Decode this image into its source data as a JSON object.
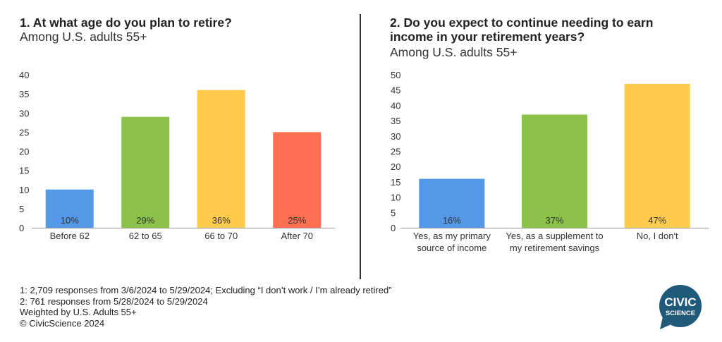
{
  "chart_data": [
    {
      "type": "bar",
      "title": "1. At what age do you plan to retire?",
      "subtitle": "Among U.S. adults 55+",
      "categories": [
        "Before 62",
        "62 to 65",
        "66 to 70",
        "After 70"
      ],
      "values": [
        10,
        29,
        36,
        25
      ],
      "value_labels": [
        "10%",
        "29%",
        "36%",
        "25%"
      ],
      "colors": [
        "#5499E8",
        "#8BC34A",
        "#FFCC4D",
        "#FF7052"
      ],
      "ylim": [
        0,
        40
      ],
      "yticks": [
        "0",
        "5",
        "10",
        "15",
        "20",
        "25",
        "30",
        "35",
        "40"
      ],
      "grid": false
    },
    {
      "type": "bar",
      "title": "2. Do you expect to continue needing to earn income in your retirement years?",
      "subtitle": "Among U.S. adults 55+",
      "categories": [
        [
          "Yes, as my primary",
          "source of income"
        ],
        [
          "Yes, as a supplement to",
          "my retirement savings"
        ],
        [
          "No, I don't"
        ]
      ],
      "values": [
        16,
        37,
        47
      ],
      "value_labels": [
        "16%",
        "37%",
        "47%"
      ],
      "colors": [
        "#5499E8",
        "#8BC34A",
        "#FFCC4D"
      ],
      "ylim": [
        0,
        50
      ],
      "yticks": [
        "0",
        "5",
        "10",
        "15",
        "20",
        "25",
        "30",
        "35",
        "40",
        "45",
        "50"
      ],
      "grid": false
    }
  ],
  "chart2_title_lines": [
    "2. Do you expect to continue needing to earn",
    "income in your retirement years?"
  ],
  "footnotes": [
    "1: 2,709 responses from 3/6/2024 to 5/29/2024; Excluding “I don’t work / I’m already retired”",
    "2: 761 responses from 5/28/2024 to 5/29/2024",
    "Weighted by U.S. Adults 55+",
    "© CivicScience 2024"
  ],
  "logo": {
    "line1": "CIVIC",
    "line2": "SCIENCE",
    "color": "#1F5A7A"
  }
}
